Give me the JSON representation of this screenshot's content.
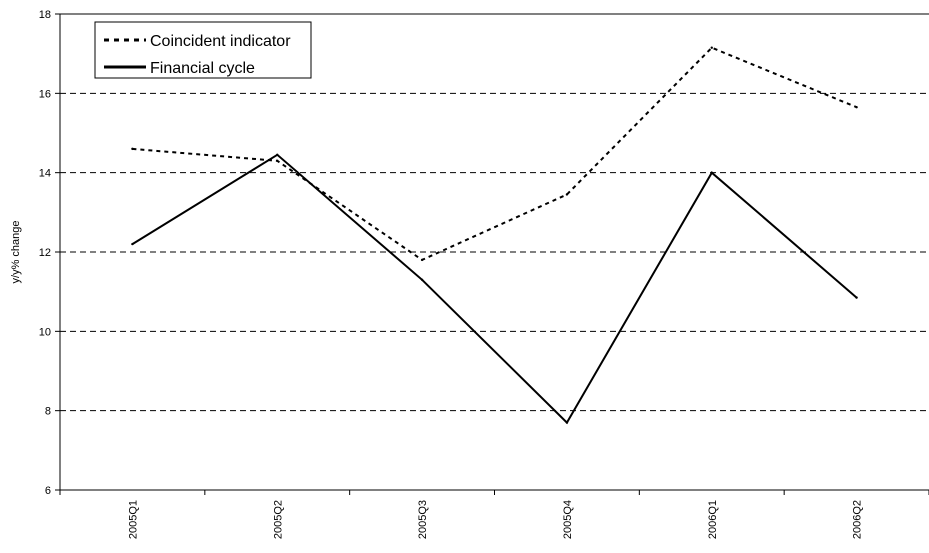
{
  "chart_data": {
    "type": "line",
    "categories": [
      "2005Q1",
      "2005Q2",
      "2005Q3",
      "2005Q4",
      "2006Q1",
      "2006Q2"
    ],
    "series": [
      {
        "name": "Coincident indicator",
        "values": [
          14.6,
          14.3,
          11.8,
          13.45,
          17.15,
          15.65
        ],
        "line_style": "dotted",
        "color": "#000000"
      },
      {
        "name": "Financial cycle",
        "values": [
          12.2,
          14.45,
          11.3,
          7.7,
          14.0,
          10.85
        ],
        "line_style": "solid",
        "color": "#000000"
      }
    ],
    "ylabel": "y/y% change",
    "xlabel": "",
    "ylim": [
      6,
      18
    ],
    "yticks": [
      6,
      8,
      10,
      12,
      14,
      16,
      18
    ],
    "grid": "horizontal dashed",
    "legend_position": "top-left"
  }
}
